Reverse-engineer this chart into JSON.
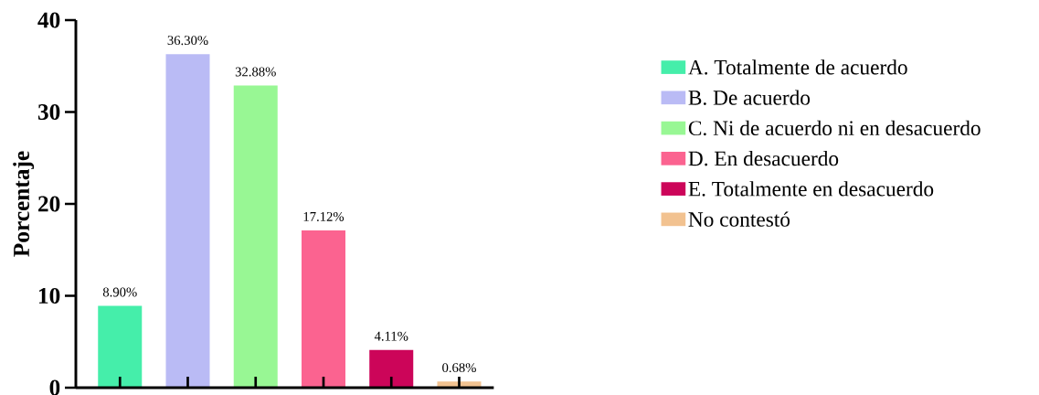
{
  "chart_data": {
    "type": "bar",
    "ylabel": "Porcentaje",
    "categories": [
      null,
      null,
      null,
      null,
      null,
      null
    ],
    "series": [
      {
        "name": "A. Totalmente de acuerdo",
        "color": "#45eeaa",
        "values": [
          8.9,
          null,
          null,
          null,
          null,
          null
        ],
        "value_labels": [
          "8.90%",
          null,
          null,
          null,
          null,
          null
        ]
      },
      {
        "name": "B. De acuerdo",
        "color": "#babbf5",
        "values": [
          null,
          36.3,
          null,
          null,
          null,
          null
        ],
        "value_labels": [
          null,
          "36.30%",
          null,
          null,
          null,
          null
        ]
      },
      {
        "name": "C. Ni de acuerdo ni en desacuerdo",
        "color": "#98f794",
        "values": [
          null,
          null,
          32.88,
          null,
          null,
          null
        ],
        "value_labels": [
          null,
          null,
          "32.88%",
          null,
          null,
          null
        ]
      },
      {
        "name": "D. En desacuerdo",
        "color": "#fb6390",
        "values": [
          null,
          null,
          null,
          17.12,
          null,
          null
        ],
        "value_labels": [
          null,
          null,
          null,
          "17.12%",
          null,
          null
        ]
      },
      {
        "name": "E. Totalmente en desacuerdo",
        "color": "#cc0559",
        "values": [
          null,
          null,
          null,
          null,
          4.11,
          null
        ],
        "value_labels": [
          null,
          null,
          null,
          null,
          "4.11%",
          null
        ]
      },
      {
        "name": "No contestó",
        "color": "#f2c290",
        "values": [
          null,
          null,
          null,
          null,
          null,
          0.68
        ],
        "value_labels": [
          null,
          null,
          null,
          null,
          null,
          "0.68%"
        ]
      }
    ],
    "ylim": [
      0,
      40
    ],
    "yticks": [
      0,
      10,
      20,
      30,
      40
    ],
    "legend": "right",
    "tick_labels": "y",
    "grid": false
  }
}
